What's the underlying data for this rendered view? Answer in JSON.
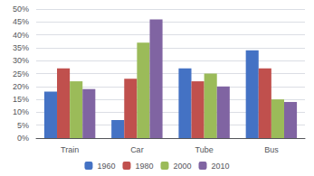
{
  "chart_data": {
    "type": "bar",
    "categories": [
      "Train",
      "Car",
      "Tube",
      "Bus"
    ],
    "series": [
      {
        "name": "1960",
        "color": "#4472C4",
        "values": [
          18,
          7,
          27,
          34
        ]
      },
      {
        "name": "1980",
        "color": "#C0504D",
        "values": [
          27,
          23,
          22,
          27
        ]
      },
      {
        "name": "2000",
        "color": "#9BBB59",
        "values": [
          22,
          37,
          25,
          15
        ]
      },
      {
        "name": "2010",
        "color": "#8064A2",
        "values": [
          19,
          46,
          20,
          14
        ]
      }
    ],
    "ylim": [
      0,
      50
    ],
    "yticks": [
      {
        "value": 0,
        "label": "0%"
      },
      {
        "value": 5,
        "label": "5%"
      },
      {
        "value": 10,
        "label": "10%"
      },
      {
        "value": 15,
        "label": "15%"
      },
      {
        "value": 20,
        "label": "20%"
      },
      {
        "value": 25,
        "label": "25%"
      },
      {
        "value": 30,
        "label": "30%"
      },
      {
        "value": 35,
        "label": "35%"
      },
      {
        "value": 40,
        "label": "40%"
      },
      {
        "value": 45,
        "label": "45%"
      },
      {
        "value": 50,
        "label": "50%"
      }
    ],
    "grid": true,
    "legend": "bottom"
  }
}
